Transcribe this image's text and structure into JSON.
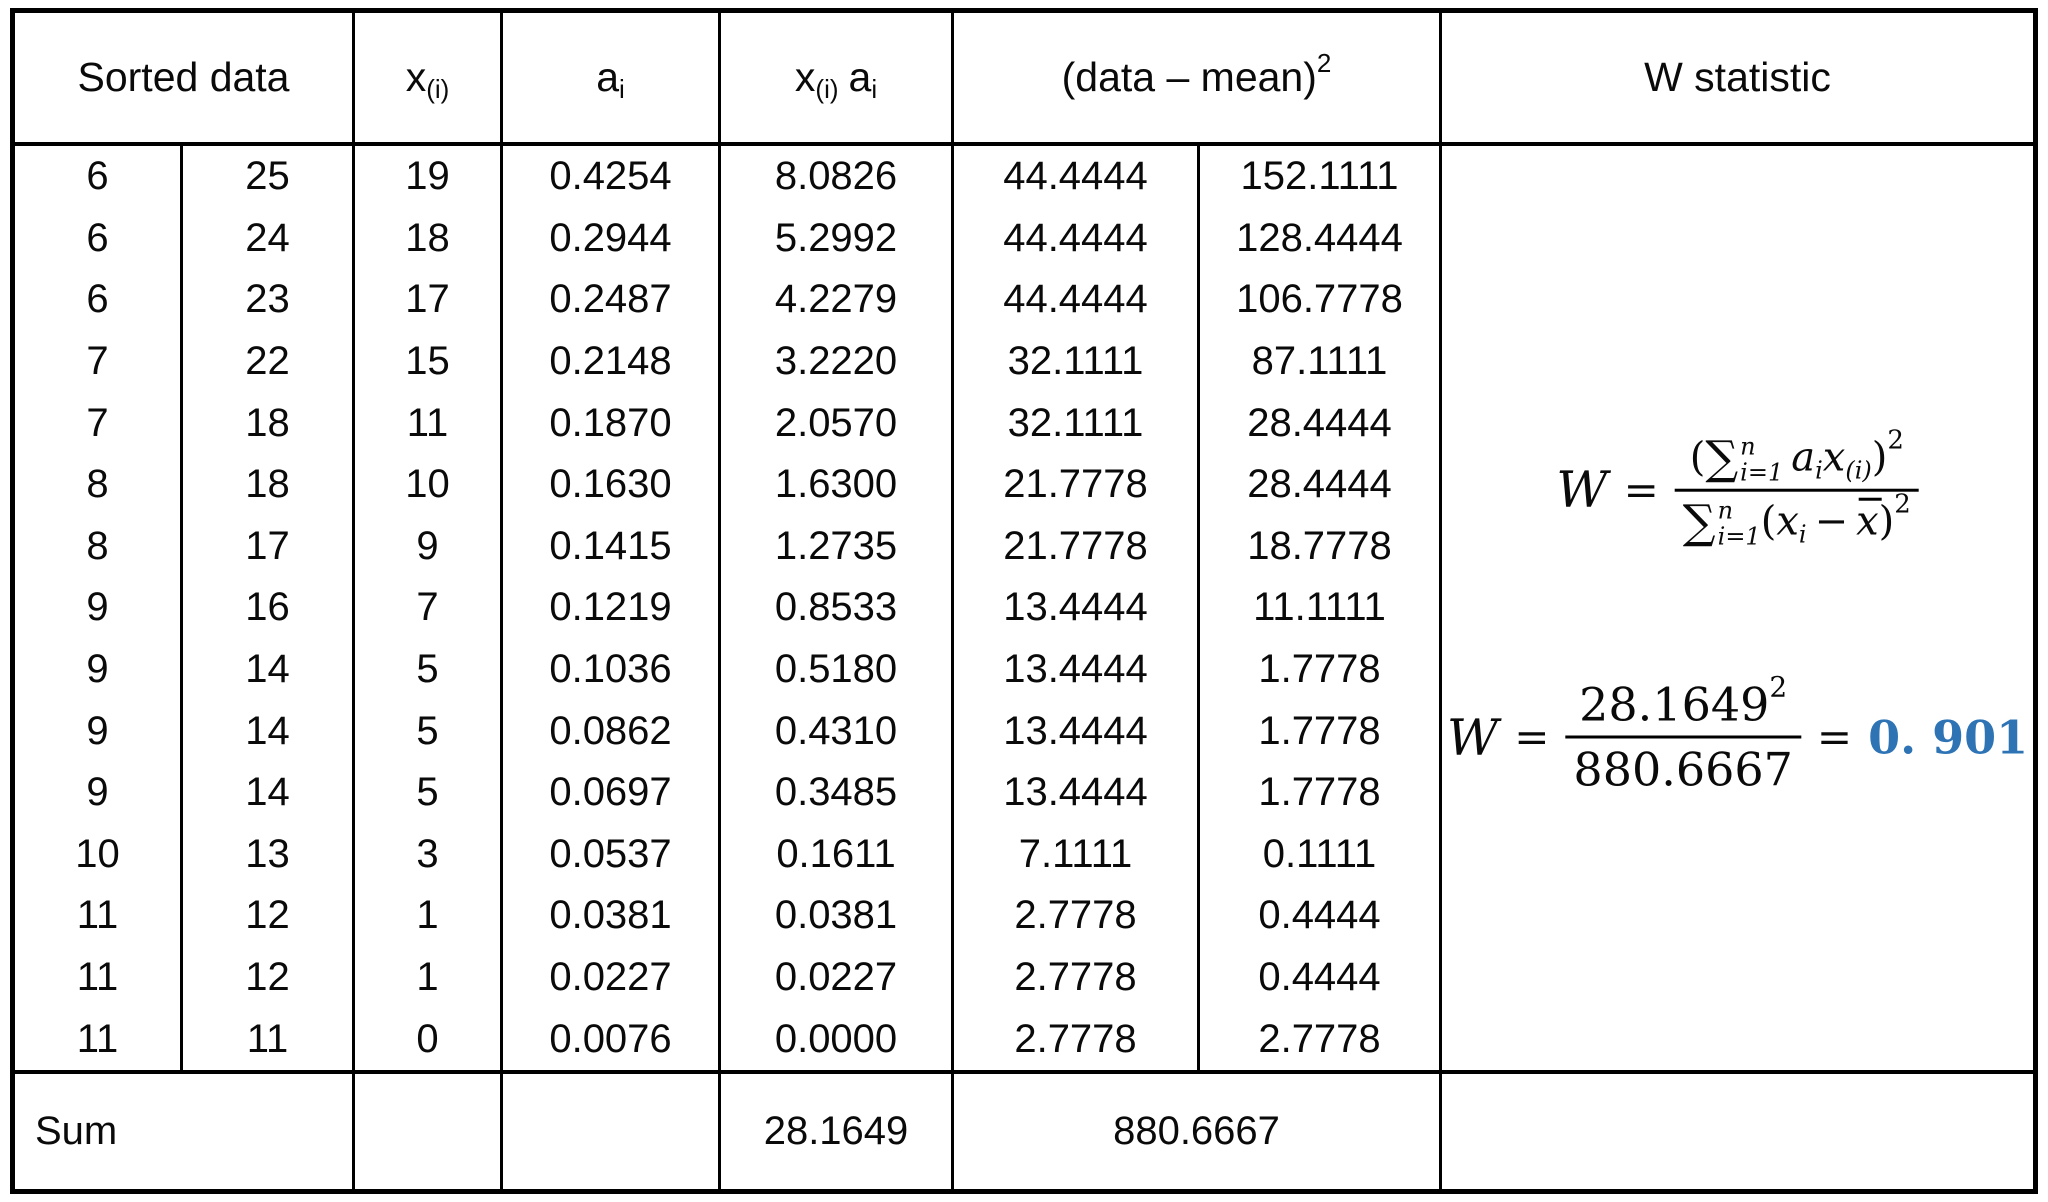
{
  "colors": {
    "accent_blue": "#2E74B5",
    "line": "#000000",
    "text": "#0a0a0a",
    "background": "#ffffff"
  },
  "table": {
    "headers": {
      "sorted_data": "Sorted data",
      "x_order_base": "x",
      "x_order_sub": "(i)",
      "a_base": "a",
      "a_sub": "i",
      "xa_x_base": "x",
      "xa_x_sub": "(i)",
      "xa_a_base": "a",
      "xa_a_sub": "i",
      "data_mean_base": "(data – mean)",
      "data_mean_sup": "2",
      "w_statistic": "W statistic"
    },
    "columns": {
      "sorted_left": [
        "6",
        "6",
        "6",
        "7",
        "7",
        "8",
        "8",
        "9",
        "9",
        "9",
        "9",
        "10",
        "11",
        "11",
        "11"
      ],
      "sorted_right": [
        "25",
        "24",
        "23",
        "22",
        "18",
        "18",
        "17",
        "16",
        "14",
        "14",
        "14",
        "13",
        "12",
        "12",
        "11"
      ],
      "x_order_diff": [
        "19",
        "18",
        "17",
        "15",
        "11",
        "10",
        "9",
        "7",
        "5",
        "5",
        "5",
        "3",
        "1",
        "1",
        "0"
      ],
      "a_coeff": [
        "0.4254",
        "0.2944",
        "0.2487",
        "0.2148",
        "0.1870",
        "0.1630",
        "0.1415",
        "0.1219",
        "0.1036",
        "0.0862",
        "0.0697",
        "0.0537",
        "0.0381",
        "0.0227",
        "0.0076"
      ],
      "xa_product": [
        "8.0826",
        "5.2992",
        "4.2279",
        "3.2220",
        "2.0570",
        "1.6300",
        "1.2735",
        "0.8533",
        "0.5180",
        "0.4310",
        "0.3485",
        "0.1611",
        "0.0381",
        "0.0227",
        "0.0000"
      ],
      "dm_left": [
        "44.4444",
        "44.4444",
        "44.4444",
        "32.1111",
        "32.1111",
        "21.7778",
        "21.7778",
        "13.4444",
        "13.4444",
        "13.4444",
        "13.4444",
        "7.1111",
        "2.7778",
        "2.7778",
        "2.7778"
      ],
      "dm_right": [
        "152.1111",
        "128.4444",
        "106.7778",
        "87.1111",
        "28.4444",
        "28.4444",
        "18.7778",
        "11.1111",
        "1.7778",
        "1.7778",
        "1.7778",
        "0.1111",
        "0.4444",
        "0.4444",
        "2.7778"
      ]
    },
    "sum_row": {
      "label": "Sum",
      "xa_sum": "28.1649",
      "dm_sum": "880.6667"
    }
  },
  "w_formula": {
    "w": "W",
    "eq": "=",
    "num_open": "(",
    "sigma": "∑",
    "sigma_sup": "n",
    "sigma_sub": "i=1",
    "a": "a",
    "a_sub": "i",
    "x": "x",
    "x_sub": "(i)",
    "num_close": ")",
    "num_pow": "2",
    "den_sigma": "∑",
    "den_sigma_sup": "n",
    "den_sigma_sub": "i=1",
    "den_open": "(",
    "den_x": "x",
    "den_x_sub": "i",
    "minus": "−",
    "xbar": "x",
    "den_close": ")",
    "den_pow": "2"
  },
  "w_calculation": {
    "w": "W",
    "eq": "=",
    "numerator": "28.1649",
    "numerator_pow": "2",
    "denominator": "880.6667",
    "eq2": "=",
    "result": "0. 901"
  }
}
